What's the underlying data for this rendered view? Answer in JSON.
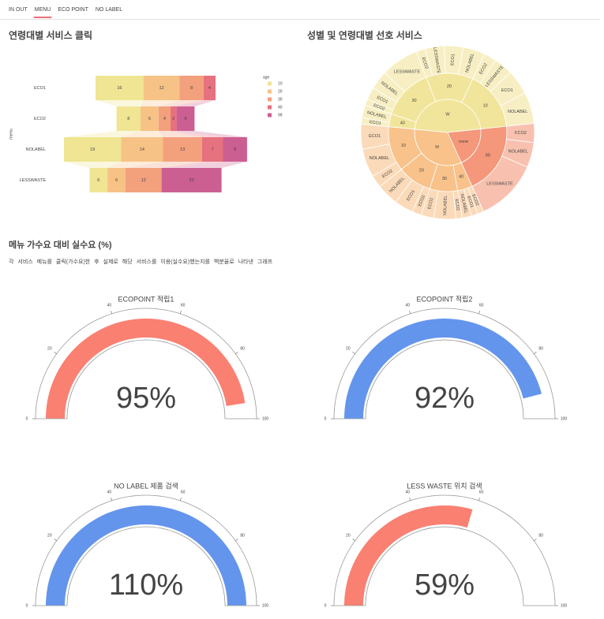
{
  "nav": {
    "tabs": [
      "IN OUT",
      "MENU",
      "ECO POINT",
      "NO LABEL"
    ],
    "active": 1
  },
  "section": {
    "title": "메뉴 가수요 대비 실수요 (%)",
    "description": "각 서비스 메뉴를 클릭(가수요)한 후 실제로 해당 서비스를 이용(실수요)했는지를 백분율로 나타낸 그래프"
  },
  "chart_data": [
    {
      "type": "funnel",
      "title": "연령대별 서비스 클릭",
      "y_label": "menu",
      "legend_title": "age",
      "categories": [
        "ECO1",
        "ECO2",
        "NOLABEL",
        "LESSWASTE"
      ],
      "series": [
        {
          "name": "10",
          "color": "#efe592",
          "values": [
            16,
            8,
            19,
            6
          ]
        },
        {
          "name": "20",
          "color": "#f7c285",
          "values": [
            12,
            6,
            14,
            6
          ]
        },
        {
          "name": "30",
          "color": "#f3a07d",
          "values": [
            8,
            4,
            13,
            12
          ]
        },
        {
          "name": "40",
          "color": "#e6717f",
          "values": [
            4,
            2,
            7,
            null
          ]
        },
        {
          "name": "99",
          "color": "#cc5f92",
          "values": [
            null,
            6,
            8,
            20
          ]
        }
      ]
    },
    {
      "type": "sunburst",
      "title": "성별 및 연령대별 선호 서비스",
      "nodes": [
        {
          "label": "W",
          "color": "#f1e59b",
          "children": [
            {
              "label": "10",
              "children": [
                {
                  "label": "NOLABEL",
                  "value": 10
                },
                {
                  "label": "ECO1",
                  "value": 8
                },
                {
                  "label": "LESSWASTE",
                  "value": 6
                },
                {
                  "label": "ECO2",
                  "value": 4
                }
              ]
            },
            {
              "label": "20",
              "children": [
                {
                  "label": "NOLABEL",
                  "value": 7
                },
                {
                  "label": "ECO1",
                  "value": 6
                },
                {
                  "label": "LESSWASTE",
                  "value": 6
                },
                {
                  "label": "ECO2",
                  "value": 3
                }
              ]
            },
            {
              "label": "30",
              "children": [
                {
                  "label": "LESSWASTE",
                  "value": 12
                },
                {
                  "label": "NOLABEL",
                  "value": 6
                },
                {
                  "label": "ECO1",
                  "value": 4
                },
                {
                  "label": "ECO2",
                  "value": 2
                }
              ]
            },
            {
              "label": "40",
              "children": [
                {
                  "label": "NOLABEL",
                  "value": 4
                },
                {
                  "label": "ECO1",
                  "value": 2
                }
              ]
            }
          ]
        },
        {
          "label": "M",
          "color": "#f8c28a",
          "children": [
            {
              "label": "10",
              "children": [
                {
                  "label": "ECO1",
                  "value": 8
                },
                {
                  "label": "NOLABEL",
                  "value": 9
                },
                {
                  "label": "ECO2",
                  "value": 4
                }
              ]
            },
            {
              "label": "20",
              "children": [
                {
                  "label": "NOLABEL",
                  "value": 7
                },
                {
                  "label": "ECO1",
                  "value": 6
                },
                {
                  "label": "ECO2",
                  "value": 3
                }
              ]
            },
            {
              "label": "30",
              "children": [
                {
                  "label": "ECO1",
                  "value": 4
                },
                {
                  "label": "NOLABEL",
                  "value": 7
                },
                {
                  "label": "ECO2",
                  "value": 2
                }
              ]
            },
            {
              "label": "40",
              "children": [
                {
                  "label": "NOLABEL",
                  "value": 3
                },
                {
                  "label": "ECO1",
                  "value": 2
                },
                {
                  "label": "ECO2",
                  "value": 2
                }
              ]
            }
          ]
        },
        {
          "label": "none",
          "color": "#f4977a",
          "children": [
            {
              "label": "99",
              "children": [
                {
                  "label": "LESSWASTE",
                  "value": 20
                },
                {
                  "label": "NOLABEL",
                  "value": 8
                },
                {
                  "label": "ECO2",
                  "value": 6
                }
              ]
            }
          ]
        }
      ]
    },
    {
      "type": "gauge",
      "title": "ECOPOINT 적립1",
      "value": 95,
      "value_label": "95%",
      "color": "#fa8072",
      "ylim": [
        0,
        100
      ],
      "yticks": [
        0,
        20,
        40,
        60,
        80,
        100
      ]
    },
    {
      "type": "gauge",
      "title": "ECOPOINT 적립2",
      "value": 92,
      "value_label": "92%",
      "color": "#6495ed",
      "ylim": [
        0,
        100
      ],
      "yticks": [
        0,
        20,
        40,
        60,
        80,
        100
      ]
    },
    {
      "type": "gauge",
      "title": "NO LABEL 제품 검색",
      "value": 110,
      "value_label": "110%",
      "color": "#6495ed",
      "ylim": [
        0,
        100
      ],
      "yticks": [
        0,
        20,
        40,
        60,
        80,
        100
      ]
    },
    {
      "type": "gauge",
      "title": "LESS WASTE 위치 검색",
      "value": 59,
      "value_label": "59%",
      "color": "#fa8072",
      "ylim": [
        0,
        100
      ],
      "yticks": [
        0,
        20,
        40,
        60,
        80,
        100
      ]
    }
  ]
}
